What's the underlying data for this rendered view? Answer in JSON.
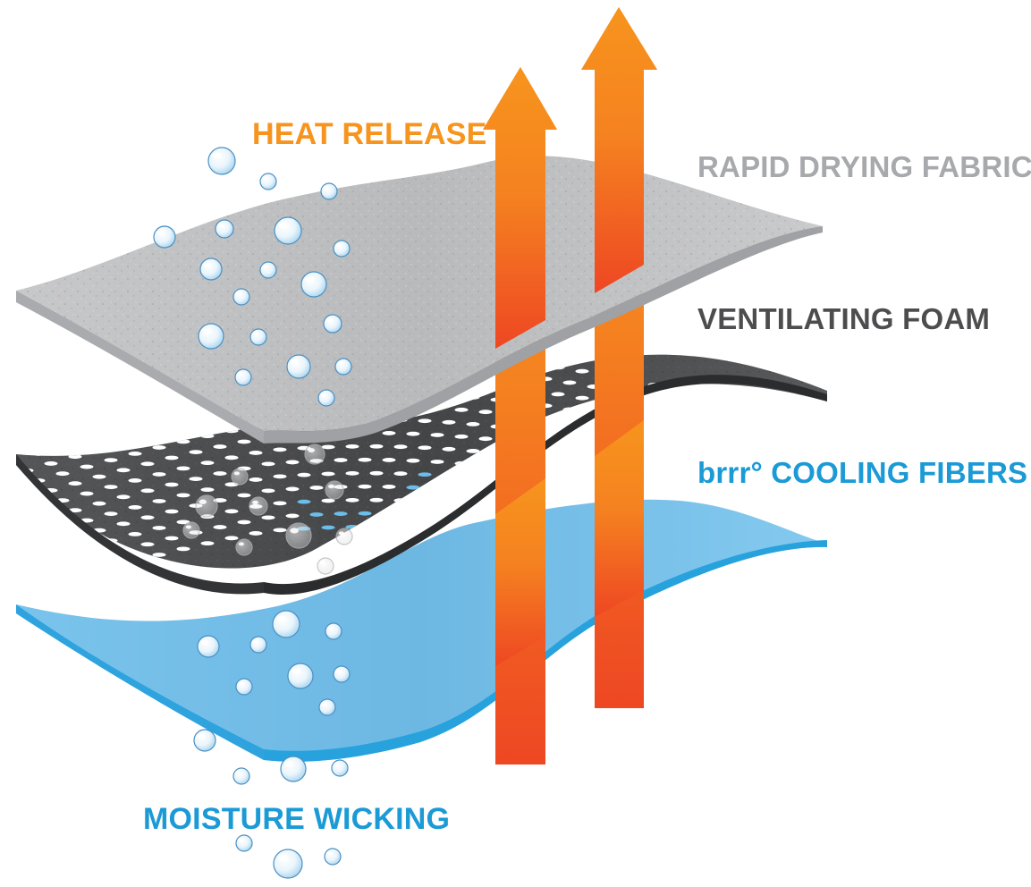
{
  "labels": {
    "heat_release": "HEAT RELEASE",
    "rapid_drying_fabric": "RAPID DRYING FABRIC",
    "ventilating_foam": "VENTILATING FOAM",
    "cooling_fibers": "brrr° COOLING FIBERS",
    "moisture_wicking": "MOISTURE WICKING"
  },
  "colors": {
    "heat_release": "#f7941d",
    "rapid_drying_fabric": "#a7a9ac",
    "ventilating_foam": "#4d4d4f",
    "cooling_fibers": "#1b9ad6",
    "moisture_wicking": "#1b9ad6",
    "arrow_top": "#f7941d",
    "arrow_bottom": "#ee4723",
    "fabric_gray": "#bcbec0",
    "foam_dark": "#4a4b4d",
    "fiber_blue": "#6cbde9"
  }
}
